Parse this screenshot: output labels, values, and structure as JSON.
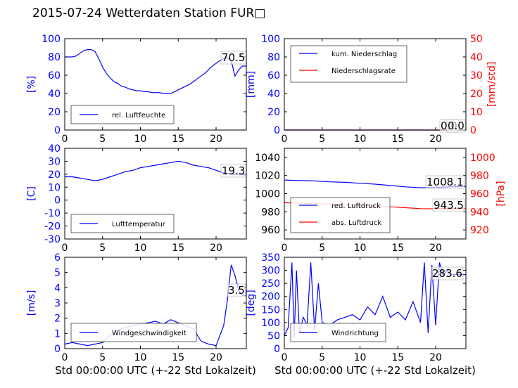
{
  "title": "2015-07-24 Wetterdaten Station FUR□",
  "chart_data": [
    {
      "id": "humidity",
      "type": "line",
      "title": "",
      "xlabel": "",
      "ylabel": "[%]",
      "xlim": [
        0,
        24
      ],
      "ylim": [
        0,
        100
      ],
      "xticks": [
        0,
        5,
        10,
        15,
        20
      ],
      "yticks": [
        0,
        20,
        40,
        60,
        80,
        100
      ],
      "legend_position": "lower-left",
      "last_value_label": "70.5",
      "series": [
        {
          "name": "rel. Luftfeuchte",
          "color": "#0000ff",
          "x": [
            0,
            0.5,
            1,
            1.5,
            2,
            2.5,
            3,
            3.5,
            4,
            4.5,
            5,
            5.5,
            6,
            6.5,
            7,
            7.5,
            8,
            8.5,
            9,
            9.5,
            10,
            10.5,
            11,
            11.5,
            12,
            12.5,
            13,
            13.5,
            14,
            14.5,
            15,
            15.5,
            16,
            16.5,
            17,
            17.5,
            18,
            18.5,
            19,
            19.5,
            20,
            20.5,
            21,
            21.5,
            22,
            22.5,
            23,
            23.5,
            24
          ],
          "y": [
            80,
            80,
            80,
            81,
            84,
            87,
            88,
            88,
            86,
            78,
            69,
            62,
            57,
            53,
            51,
            48,
            47,
            45,
            44,
            43,
            43,
            42,
            42,
            41,
            41,
            41,
            40,
            40,
            40,
            42,
            44,
            46,
            48,
            50,
            53,
            56,
            59,
            62,
            66,
            70,
            73,
            76,
            78,
            79,
            76,
            59,
            66,
            70,
            70
          ]
        }
      ]
    },
    {
      "id": "precip",
      "type": "line",
      "title": "",
      "xlabel": "",
      "ylabel": "[mm]",
      "ylabel_right": "[mm/std]",
      "xlim": [
        0,
        24
      ],
      "ylim": [
        0,
        100
      ],
      "ylim_right": [
        0,
        50
      ],
      "xticks": [
        0,
        5,
        10,
        15,
        20
      ],
      "yticks": [
        0,
        20,
        40,
        60,
        80,
        100
      ],
      "yticks_right": [
        0,
        10,
        20,
        30,
        40,
        50
      ],
      "legend_position": "upper-left",
      "last_value_label": "0.0",
      "last_value_label_2": "0.0",
      "series": [
        {
          "name": "kum. Niederschlag",
          "color": "#0000ff",
          "axis": "left",
          "x": [
            0,
            24
          ],
          "y": [
            0,
            0
          ]
        },
        {
          "name": "Niederschlagsrate",
          "color": "#ff0000",
          "axis": "right",
          "x": [
            0,
            24
          ],
          "y": [
            0,
            0
          ]
        }
      ]
    },
    {
      "id": "temperature",
      "type": "line",
      "title": "",
      "xlabel": "",
      "ylabel": "[C]",
      "xlim": [
        0,
        24
      ],
      "ylim": [
        -30,
        40
      ],
      "xticks": [
        0,
        5,
        10,
        15,
        20
      ],
      "yticks": [
        -30,
        -20,
        -10,
        0,
        10,
        20,
        30,
        40
      ],
      "legend_position": "lower-left",
      "last_value_label": "19.3",
      "series": [
        {
          "name": "Lufttemperatur",
          "color": "#0000ff",
          "x": [
            0,
            1,
            2,
            3,
            4,
            5,
            6,
            7,
            8,
            9,
            10,
            11,
            12,
            13,
            14,
            15,
            16,
            17,
            18,
            19,
            20,
            21,
            22,
            23,
            24
          ],
          "y": [
            18,
            18,
            17,
            16,
            15,
            16,
            18,
            20,
            22,
            23,
            25,
            26,
            27,
            28,
            29,
            30,
            29,
            27,
            26,
            25,
            23,
            21,
            20,
            20,
            19.3
          ]
        }
      ]
    },
    {
      "id": "pressure",
      "type": "line",
      "title": "",
      "xlabel": "",
      "ylabel_right": "[hPa]",
      "xlim": [
        0,
        24
      ],
      "ylim": [
        950,
        1050
      ],
      "ylim_right": [
        910,
        1010
      ],
      "xticks": [
        0,
        5,
        10,
        15,
        20
      ],
      "yticks": [
        960,
        980,
        1000,
        1020,
        1040
      ],
      "yticks_right": [
        920,
        940,
        960,
        980,
        1000
      ],
      "legend_position": "lower-left",
      "last_value_label": "1008.1",
      "last_value_label_2": "943.5",
      "series": [
        {
          "name": "red. Luftdruck",
          "color": "#0000ff",
          "axis": "left",
          "x": [
            0,
            2,
            4,
            6,
            8,
            10,
            12,
            14,
            16,
            18,
            20,
            22,
            24
          ],
          "y": [
            1015,
            1014.5,
            1014,
            1013,
            1012.5,
            1011.5,
            1010.5,
            1009,
            1007.5,
            1006.5,
            1006.8,
            1007.5,
            1008.1
          ]
        },
        {
          "name": "abs. Luftdruck",
          "color": "#ff0000",
          "axis": "right",
          "x": [
            0,
            2,
            4,
            6,
            8,
            10,
            12,
            14,
            16,
            18,
            20,
            22,
            24
          ],
          "y": [
            950,
            949.5,
            949,
            948.5,
            948,
            947,
            946.5,
            945.5,
            944.5,
            943.5,
            943.3,
            943.4,
            943.5
          ]
        }
      ]
    },
    {
      "id": "windspeed",
      "type": "line",
      "title": "",
      "xlabel": "Std 00:00:00 UTC (+-22 Std Lokalzeit)",
      "ylabel": "[m/s]",
      "xlim": [
        0,
        24
      ],
      "ylim": [
        0,
        6
      ],
      "xticks": [
        0,
        5,
        10,
        15,
        20
      ],
      "yticks": [
        0,
        1,
        2,
        3,
        4,
        5,
        6
      ],
      "legend_position": "lower-left",
      "last_value_label": "3.5",
      "series": [
        {
          "name": "Windgeschwindigkeit",
          "color": "#0000ff",
          "x": [
            0,
            1,
            2,
            3,
            4,
            5,
            6,
            7,
            8,
            9,
            10,
            11,
            12,
            13,
            14,
            15,
            16,
            17,
            18,
            19,
            20,
            21,
            21.5,
            22,
            22.5,
            23,
            23.5,
            24
          ],
          "y": [
            0.3,
            0.4,
            0.3,
            0.2,
            0.3,
            0.4,
            0.9,
            1.2,
            1.4,
            1.5,
            1.6,
            1.7,
            1.8,
            1.6,
            1.9,
            1.7,
            1.5,
            1.3,
            0.5,
            0.3,
            0.2,
            1.5,
            3.2,
            5.5,
            4.8,
            3.8,
            3.5,
            3.5
          ]
        }
      ]
    },
    {
      "id": "winddir",
      "type": "line",
      "title": "",
      "xlabel": "Std 00:00:00 UTC (+-22 Std Lokalzeit)",
      "ylabel": "[deg]",
      "xlim": [
        0,
        24
      ],
      "ylim": [
        0,
        350
      ],
      "xticks": [
        0,
        5,
        10,
        15,
        20
      ],
      "yticks": [
        0,
        50,
        100,
        150,
        200,
        250,
        300,
        350
      ],
      "legend_position": "lower-left",
      "last_value_label": "283.6",
      "series": [
        {
          "name": "Windrichtung",
          "color": "#0000ff",
          "x": [
            0,
            0.5,
            1,
            1.3,
            1.6,
            2,
            2.5,
            3,
            3.5,
            4,
            4.5,
            5,
            6,
            7,
            8,
            9,
            10,
            11,
            12,
            13,
            14,
            15,
            16,
            17,
            18,
            18.5,
            19,
            19.5,
            20,
            20.5,
            21,
            21.5,
            22,
            23,
            24
          ],
          "y": [
            50,
            80,
            330,
            40,
            300,
            60,
            120,
            90,
            330,
            70,
            250,
            100,
            90,
            110,
            120,
            130,
            110,
            160,
            130,
            200,
            120,
            140,
            110,
            180,
            100,
            330,
            60,
            320,
            90,
            330,
            280,
            300,
            285,
            284,
            283.6
          ]
        }
      ]
    }
  ]
}
